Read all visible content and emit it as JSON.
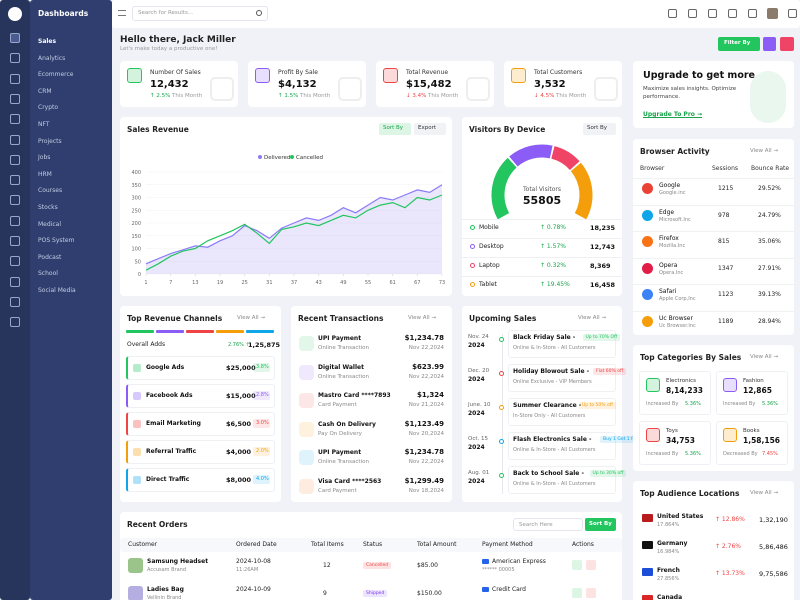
{
  "sidebar": {
    "brand": "Dashboards",
    "items": [
      "Sales",
      "Analytics",
      "Ecommerce",
      "CRM",
      "Crypto",
      "NFT",
      "Projects",
      "Jobs",
      "HRM",
      "Courses",
      "Stocks",
      "Medical",
      "POS System",
      "Podcast",
      "School",
      "Social Media"
    ]
  },
  "header": {
    "search": "Search for Results..."
  },
  "welcome": {
    "title": "Hello there, Jack Miller",
    "subtitle": "Let's make today a productive one!",
    "filter": "Filter By"
  },
  "stats": [
    {
      "label": "Number Of Sales",
      "value": "12,432",
      "change": "↑ 2.5%",
      "period": "This Month",
      "color": "#22c55e"
    },
    {
      "label": "Profit By Sale",
      "value": "$4,132",
      "change": "↑ 1.5%",
      "period": "This Month",
      "color": "#8b5cf6"
    },
    {
      "label": "Total Revenue",
      "value": "$15,482",
      "change": "↓ 3.4%",
      "period": "This Month",
      "color": "#ef4444"
    },
    {
      "label": "Total Customers",
      "value": "3,532",
      "change": "↓ 4.5%",
      "period": "This Month",
      "color": "#f59e0b"
    }
  ],
  "upgrade": {
    "title": "Upgrade to get more",
    "text": "Maximize sales insights. Optimize performance.",
    "link": "Upgrade To Pro →"
  },
  "chart_data": [
    {
      "type": "line",
      "title": "Sales Revenue",
      "sort_label": "Sort By",
      "export_label": "Export",
      "x": [
        1,
        4,
        7,
        10,
        13,
        16,
        19,
        22,
        25,
        28,
        31,
        34,
        37,
        40,
        43,
        46,
        49,
        52,
        55,
        58,
        61,
        64,
        67,
        70,
        73
      ],
      "xlim": [
        1,
        73
      ],
      "xticks": [
        1,
        7,
        13,
        19,
        25,
        31,
        37,
        43,
        49,
        55,
        61,
        67,
        73
      ],
      "ylim": [
        0,
        400
      ],
      "yticks": [
        0,
        50,
        100,
        150,
        200,
        250,
        300,
        350,
        400
      ],
      "grid": true,
      "series": [
        {
          "name": "Delivered",
          "color": "#8b7cf6",
          "fill": true,
          "values": [
            40,
            60,
            80,
            95,
            110,
            105,
            130,
            150,
            190,
            170,
            140,
            180,
            200,
            220,
            210,
            230,
            260,
            240,
            270,
            300,
            290,
            310,
            330,
            320,
            350
          ]
        },
        {
          "name": "Cancelled",
          "color": "#22c55e",
          "fill": false,
          "values": [
            15,
            40,
            70,
            90,
            100,
            130,
            150,
            170,
            195,
            160,
            120,
            175,
            185,
            200,
            190,
            210,
            230,
            220,
            250,
            270,
            280,
            260,
            300,
            290,
            310
          ]
        }
      ]
    },
    {
      "type": "donut",
      "title": "Visitors By Device",
      "sort_label": "Sort By",
      "center_label": "Total Visitors",
      "total": 55805,
      "categories": [
        "Mobile",
        "Desktop",
        "Laptop",
        "Tablet"
      ],
      "values": [
        18235,
        12743,
        8369,
        16458
      ],
      "value_labels": [
        "18,235",
        "12,743",
        "8,369",
        "16,458"
      ],
      "colors": [
        "#22c55e",
        "#8b5cf6",
        "#ef4466",
        "#f59e0b"
      ],
      "changes": [
        "↑ 0.78%",
        "↑ 1.57%",
        "↑ 0.32%",
        "↑ 19.45%"
      ]
    }
  ],
  "channels": {
    "title": "Top Revenue Channels",
    "view_all": "View All →",
    "overall_label": "Overall Adds",
    "overall_change": "2.76% ↑",
    "overall_value": "1,25,875",
    "items": [
      {
        "name": "Google Ads",
        "amount": "$25,000",
        "rate": "3.8%",
        "color": "#22c55e"
      },
      {
        "name": "Facebook Ads",
        "amount": "$15,000",
        "rate": "2.8%",
        "color": "#8b5cf6"
      },
      {
        "name": "Email Marketing",
        "amount": "$6,500",
        "rate": "3.0%",
        "color": "#ef4444"
      },
      {
        "name": "Referral Traffic",
        "amount": "$4,000",
        "rate": "2.0%",
        "color": "#f59e0b"
      },
      {
        "name": "Direct Traffic",
        "amount": "$8,000",
        "rate": "4.0%",
        "color": "#0ea5e9"
      }
    ]
  },
  "transactions": {
    "title": "Recent Transactions",
    "view_all": "View All →",
    "items": [
      {
        "name": "UPI Payment",
        "type": "Online Transaction",
        "amount": "$1,234.78",
        "date": "Nov 22,2024",
        "color": "#22c55e"
      },
      {
        "name": "Digital Wallet",
        "type": "Online Transaction",
        "amount": "$623.99",
        "date": "Nov 22,2024",
        "color": "#8b5cf6"
      },
      {
        "name": "Mastro Card ****7893",
        "type": "Card Payment",
        "amount": "$1,324",
        "date": "Nov 21,2024",
        "color": "#ef4444"
      },
      {
        "name": "Cash On Delivery",
        "type": "Pay On Delivery",
        "amount": "$1,123.49",
        "date": "Nov 20,2024",
        "color": "#f59e0b"
      },
      {
        "name": "UPI Payment",
        "type": "Online Transaction",
        "amount": "$1,234.78",
        "date": "Nov 22,2024",
        "color": "#0ea5e9"
      },
      {
        "name": "Visa Card ****2563",
        "type": "Card Payment",
        "amount": "$1,299.49",
        "date": "Nov 18,2024",
        "color": "#f97316"
      }
    ]
  },
  "upcoming": {
    "title": "Upcoming Sales",
    "view_all": "View All →",
    "items": [
      {
        "month": "Nov. 24",
        "year": "2024",
        "title": "Black Friday Sale -",
        "badge": "Up to 70% Off",
        "detail": "Online & In-Store - All Customers",
        "color": "#22c55e"
      },
      {
        "month": "Dec. 20",
        "year": "2024",
        "title": "Holiday Blowout Sale -",
        "badge": "Flat 60% off",
        "detail": "Online Exclusive - VIP Members",
        "color": "#ef4444"
      },
      {
        "month": "June. 10",
        "year": "2024",
        "title": "Summer Clearance -",
        "badge": "Up to 50% off",
        "detail": "In-Store Only - All Customers",
        "color": "#f59e0b"
      },
      {
        "month": "Oct. 15",
        "year": "2024",
        "title": "Flash Electronics Sale -",
        "badge": "Buy 1 Get 1 Free",
        "detail": "Online & In-Store - All Customers",
        "color": "#0ea5e9"
      },
      {
        "month": "Aug. 01",
        "year": "2024",
        "title": "Back to School Sale -",
        "badge": "Up to 30% off",
        "detail": "Online & In-Store - All Customers",
        "color": "#22c55e"
      }
    ]
  },
  "browsers": {
    "title": "Browser Activity",
    "view_all": "View All →",
    "columns": [
      "Browser",
      "Sessions",
      "Bounce Rate"
    ],
    "rows": [
      {
        "name": "Google",
        "company": "Google.inc",
        "sessions": "1215",
        "bounce": "29.52%",
        "color": "#ea4335"
      },
      {
        "name": "Edge",
        "company": "Microsoft.Inc",
        "sessions": "978",
        "bounce": "24.79%",
        "color": "#0ea5e9"
      },
      {
        "name": "Firefox",
        "company": "Mozilla.Inc",
        "sessions": "815",
        "bounce": "35.06%",
        "color": "#f97316"
      },
      {
        "name": "Opera",
        "company": "Opera.Inc",
        "sessions": "1347",
        "bounce": "27.91%",
        "color": "#e11d48"
      },
      {
        "name": "Safari",
        "company": "Apple Corp,Inc",
        "sessions": "1123",
        "bounce": "39.13%",
        "color": "#3b82f6"
      },
      {
        "name": "Uc Browser",
        "company": "Uc Browser.Inc",
        "sessions": "1189",
        "bounce": "28.94%",
        "color": "#f59e0b"
      }
    ]
  },
  "categories": {
    "title": "Top Categories By Sales",
    "view_all": "View All →",
    "items": [
      {
        "name": "Electronics",
        "value": "8,14,233",
        "note": "Increased By",
        "change": "5.36%",
        "color": "#22c55e"
      },
      {
        "name": "Fashion",
        "value": "12,865",
        "note": "Increased By",
        "change": "5.36%",
        "color": "#8b5cf6"
      },
      {
        "name": "Toys",
        "value": "34,753",
        "note": "Increased By",
        "change": "5.36%",
        "color": "#ef4444"
      },
      {
        "name": "Books",
        "value": "1,58,156",
        "note": "Decreased By",
        "change": "7.45%",
        "color": "#f59e0b"
      }
    ]
  },
  "audience": {
    "title": "Top Audience Locations",
    "view_all": "View All →",
    "items": [
      {
        "country": "United States",
        "share": "17.864%",
        "change": "↑ 12.86%",
        "value": "1,32,190"
      },
      {
        "country": "Germany",
        "share": "16.984%",
        "change": "↑ 2.76%",
        "value": "5,86,486"
      },
      {
        "country": "French",
        "share": "27.856%",
        "change": "↑ 13.73%",
        "value": "9,75,586"
      },
      {
        "country": "Canada"
      }
    ]
  },
  "orders": {
    "title": "Recent Orders",
    "search": "Search Here",
    "sort": "Sort By",
    "columns": [
      "Customer",
      "Ordered Date",
      "Total Items",
      "Status",
      "Total Amount",
      "Payment Method",
      "Actions"
    ],
    "rows": [
      {
        "product": "Samsung Headset",
        "brand": "Accusam Brand",
        "date": "2024-10-08",
        "time": "11:26AM",
        "items": "12",
        "status": "Cancelled",
        "amount": "$85.00",
        "method": "American Express",
        "card": "****** 00005"
      },
      {
        "product": "Ladies Bag",
        "brand": "Vellinin Brand",
        "date": "2024-10-09",
        "items": "9",
        "status": "Shipped",
        "amount": "$150.00",
        "method": "Credit Card"
      }
    ]
  }
}
